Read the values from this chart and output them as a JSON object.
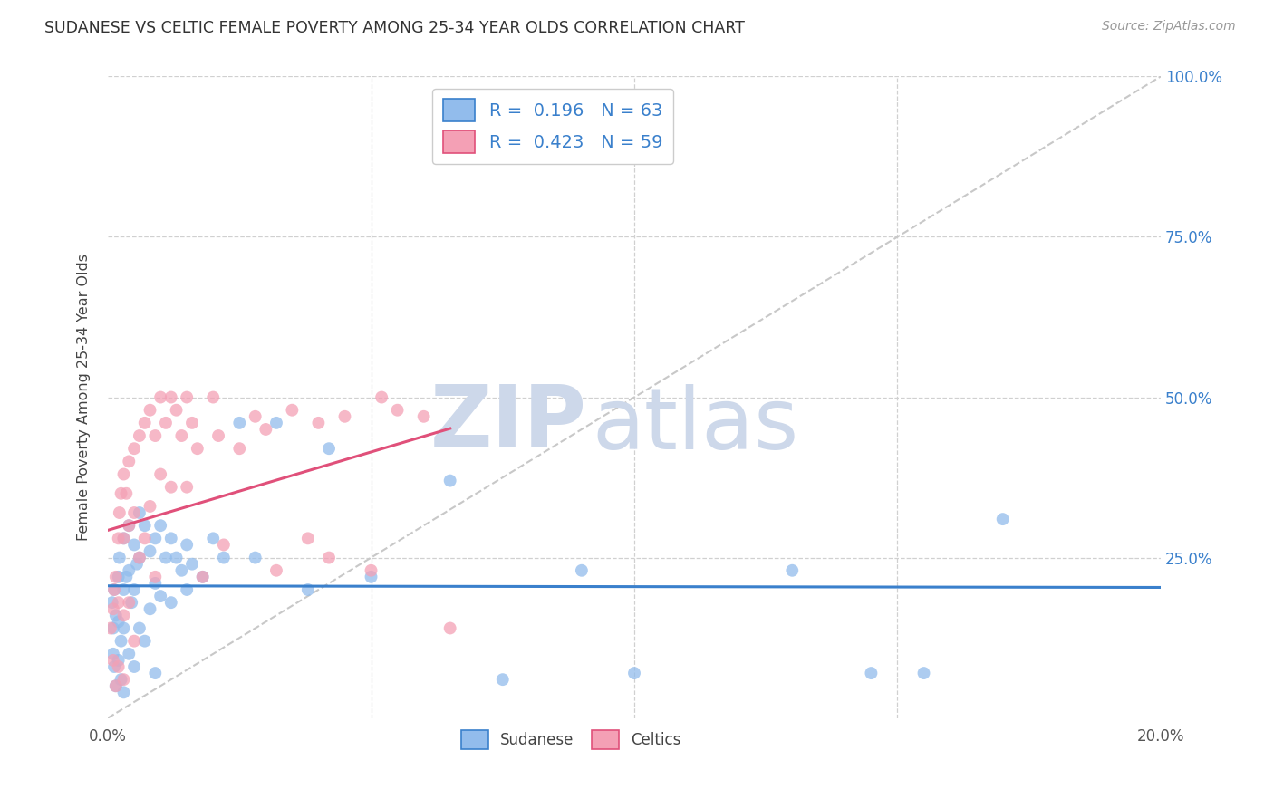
{
  "title": "SUDANESE VS CELTIC FEMALE POVERTY AMONG 25-34 YEAR OLDS CORRELATION CHART",
  "source": "Source: ZipAtlas.com",
  "ylabel": "Female Poverty Among 25-34 Year Olds",
  "xlim": [
    0.0,
    0.2
  ],
  "ylim": [
    0.0,
    1.0
  ],
  "sudanese_color": "#92bcec",
  "celtics_color": "#f4a0b5",
  "sudanese_line_color": "#3a80cc",
  "celtics_line_color": "#e0507a",
  "diagonal_color": "#c8c8c8",
  "R_sudanese": 0.196,
  "N_sudanese": 63,
  "R_celtics": 0.423,
  "N_celtics": 59,
  "watermark_zip": "ZIP",
  "watermark_atlas": "atlas",
  "watermark_color": "#cdd8ea",
  "sudanese_x": [
    0.0008,
    0.001,
    0.001,
    0.0012,
    0.0012,
    0.0015,
    0.0015,
    0.002,
    0.002,
    0.002,
    0.0022,
    0.0025,
    0.0025,
    0.003,
    0.003,
    0.003,
    0.003,
    0.0035,
    0.004,
    0.004,
    0.004,
    0.0045,
    0.005,
    0.005,
    0.005,
    0.0055,
    0.006,
    0.006,
    0.006,
    0.007,
    0.007,
    0.008,
    0.008,
    0.009,
    0.009,
    0.009,
    0.01,
    0.01,
    0.011,
    0.012,
    0.012,
    0.013,
    0.014,
    0.015,
    0.015,
    0.016,
    0.018,
    0.02,
    0.022,
    0.025,
    0.028,
    0.032,
    0.038,
    0.042,
    0.05,
    0.065,
    0.075,
    0.09,
    0.1,
    0.13,
    0.145,
    0.155,
    0.17
  ],
  "sudanese_y": [
    0.18,
    0.14,
    0.1,
    0.2,
    0.08,
    0.16,
    0.05,
    0.22,
    0.15,
    0.09,
    0.25,
    0.12,
    0.06,
    0.28,
    0.2,
    0.14,
    0.04,
    0.22,
    0.3,
    0.23,
    0.1,
    0.18,
    0.27,
    0.2,
    0.08,
    0.24,
    0.32,
    0.25,
    0.14,
    0.3,
    0.12,
    0.26,
    0.17,
    0.28,
    0.21,
    0.07,
    0.3,
    0.19,
    0.25,
    0.28,
    0.18,
    0.25,
    0.23,
    0.27,
    0.2,
    0.24,
    0.22,
    0.28,
    0.25,
    0.46,
    0.25,
    0.46,
    0.2,
    0.42,
    0.22,
    0.37,
    0.06,
    0.23,
    0.07,
    0.23,
    0.07,
    0.07,
    0.31
  ],
  "celtics_x": [
    0.0005,
    0.001,
    0.001,
    0.0012,
    0.0015,
    0.0015,
    0.002,
    0.002,
    0.002,
    0.0022,
    0.0025,
    0.003,
    0.003,
    0.003,
    0.003,
    0.0035,
    0.004,
    0.004,
    0.004,
    0.005,
    0.005,
    0.005,
    0.006,
    0.006,
    0.007,
    0.007,
    0.008,
    0.008,
    0.009,
    0.009,
    0.01,
    0.01,
    0.011,
    0.012,
    0.012,
    0.013,
    0.014,
    0.015,
    0.015,
    0.016,
    0.017,
    0.018,
    0.02,
    0.021,
    0.022,
    0.025,
    0.028,
    0.03,
    0.032,
    0.035,
    0.038,
    0.04,
    0.042,
    0.045,
    0.05,
    0.052,
    0.055,
    0.06,
    0.065
  ],
  "celtics_y": [
    0.14,
    0.17,
    0.09,
    0.2,
    0.22,
    0.05,
    0.28,
    0.18,
    0.08,
    0.32,
    0.35,
    0.38,
    0.28,
    0.16,
    0.06,
    0.35,
    0.4,
    0.3,
    0.18,
    0.42,
    0.32,
    0.12,
    0.44,
    0.25,
    0.46,
    0.28,
    0.48,
    0.33,
    0.44,
    0.22,
    0.5,
    0.38,
    0.46,
    0.5,
    0.36,
    0.48,
    0.44,
    0.5,
    0.36,
    0.46,
    0.42,
    0.22,
    0.5,
    0.44,
    0.27,
    0.42,
    0.47,
    0.45,
    0.23,
    0.48,
    0.28,
    0.46,
    0.25,
    0.47,
    0.23,
    0.5,
    0.48,
    0.47,
    0.14
  ]
}
